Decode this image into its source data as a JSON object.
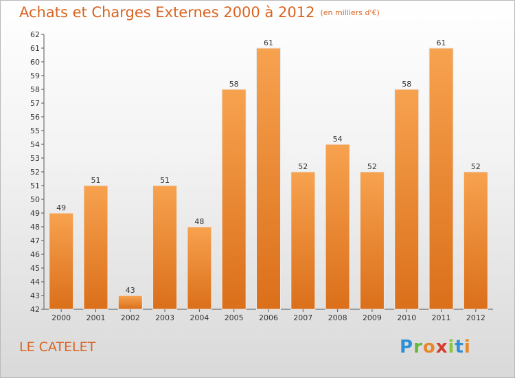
{
  "title": "Achats et Charges Externes 2000 à 2012",
  "unit_note": "(en milliers d'€)",
  "place": "LE CATELET",
  "logo": "Proxiti",
  "colors": {
    "accent": "#d9631f",
    "bar_light": "#f7a24f",
    "bar_dark": "#db6f1a"
  },
  "chart_data": {
    "type": "bar",
    "categories": [
      "2000",
      "2001",
      "2002",
      "2003",
      "2004",
      "2005",
      "2006",
      "2007",
      "2008",
      "2009",
      "2010",
      "2011",
      "2012"
    ],
    "values": [
      49,
      51,
      43,
      51,
      48,
      58,
      61,
      52,
      54,
      52,
      58,
      61,
      52
    ],
    "ylim": [
      42,
      62
    ],
    "yticks": [
      42,
      43,
      44,
      45,
      46,
      47,
      48,
      49,
      50,
      51,
      52,
      53,
      54,
      55,
      56,
      57,
      58,
      59,
      60,
      61,
      62
    ],
    "grid": false,
    "data_labels": true
  }
}
